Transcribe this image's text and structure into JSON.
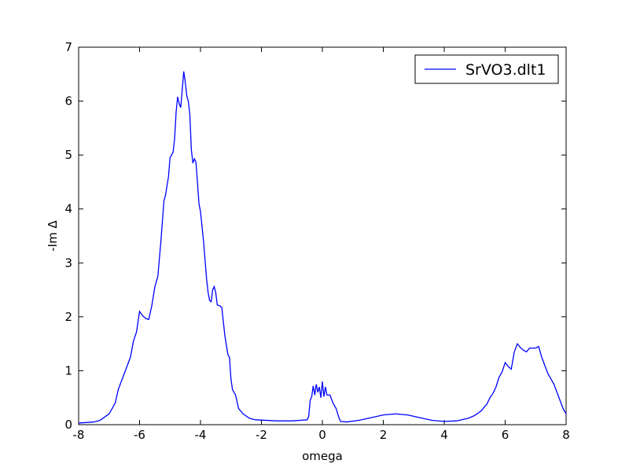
{
  "chart_data": {
    "type": "line",
    "x_label": "omega",
    "y_label": "-Im Δ",
    "xlim": [
      -8,
      8
    ],
    "xticks": [
      -8,
      -6,
      -4,
      -2,
      0,
      2,
      4,
      6,
      8
    ],
    "ylim": [
      0,
      7
    ],
    "yticks": [
      0,
      1,
      2,
      3,
      4,
      5,
      6,
      7
    ],
    "grid": false,
    "legend": "upper right",
    "x": [
      -8,
      -7.5,
      -7.3,
      -7.0,
      -6.8,
      -6.7,
      -6.5,
      -6.3,
      -6.2,
      -6.1,
      -6.0,
      -5.9,
      -5.8,
      -5.7,
      -5.6,
      -5.5,
      -5.4,
      -5.3,
      -5.2,
      -5.15,
      -5.05,
      -5.0,
      -4.9,
      -4.85,
      -4.8,
      -4.75,
      -4.7,
      -4.65,
      -4.6,
      -4.55,
      -4.5,
      -4.45,
      -4.4,
      -4.35,
      -4.3,
      -4.25,
      -4.2,
      -4.15,
      -4.1,
      -4.05,
      -4.0,
      -3.9,
      -3.8,
      -3.75,
      -3.7,
      -3.65,
      -3.6,
      -3.55,
      -3.5,
      -3.45,
      -3.35,
      -3.3,
      -3.2,
      -3.1,
      -3.05,
      -3.0,
      -2.95,
      -2.85,
      -2.75,
      -2.6,
      -2.4,
      -2.2,
      -1.5,
      -1.0,
      -0.5,
      -0.45,
      -0.4,
      -0.35,
      -0.3,
      -0.25,
      -0.2,
      -0.15,
      -0.1,
      -0.05,
      0.0,
      0.05,
      0.1,
      0.15,
      0.25,
      0.35,
      0.45,
      0.55,
      0.6,
      0.8,
      1.2,
      1.6,
      2.0,
      2.4,
      2.8,
      3.2,
      3.6,
      4.0,
      4.4,
      4.8,
      5.0,
      5.2,
      5.4,
      5.5,
      5.6,
      5.7,
      5.8,
      5.9,
      6.0,
      6.1,
      6.2,
      6.3,
      6.4,
      6.5,
      6.6,
      6.7,
      6.8,
      7.0,
      7.1,
      7.2,
      7.4,
      7.6,
      7.8,
      7.9,
      8.0
    ],
    "series": [
      {
        "name": "SrVO3.dlt1",
        "color": "#0000ff",
        "values": [
          0.03,
          0.05,
          0.08,
          0.2,
          0.4,
          0.65,
          0.95,
          1.25,
          1.55,
          1.72,
          2.1,
          2.02,
          1.97,
          1.95,
          2.2,
          2.55,
          2.75,
          3.4,
          4.15,
          4.25,
          4.6,
          4.95,
          5.05,
          5.3,
          5.8,
          6.08,
          5.95,
          5.88,
          6.2,
          6.55,
          6.35,
          6.1,
          6.0,
          5.75,
          5.1,
          4.85,
          4.93,
          4.87,
          4.5,
          4.1,
          3.95,
          3.4,
          2.7,
          2.45,
          2.3,
          2.28,
          2.5,
          2.56,
          2.45,
          2.22,
          2.2,
          2.17,
          1.65,
          1.3,
          1.25,
          0.85,
          0.65,
          0.55,
          0.3,
          0.2,
          0.12,
          0.09,
          0.07,
          0.07,
          0.09,
          0.15,
          0.45,
          0.52,
          0.72,
          0.55,
          0.75,
          0.6,
          0.7,
          0.5,
          0.8,
          0.52,
          0.7,
          0.55,
          0.55,
          0.4,
          0.3,
          0.12,
          0.06,
          0.05,
          0.08,
          0.13,
          0.18,
          0.2,
          0.18,
          0.13,
          0.08,
          0.06,
          0.07,
          0.12,
          0.17,
          0.25,
          0.38,
          0.5,
          0.58,
          0.7,
          0.88,
          0.98,
          1.15,
          1.08,
          1.03,
          1.35,
          1.5,
          1.43,
          1.38,
          1.35,
          1.42,
          1.42,
          1.45,
          1.25,
          0.95,
          0.75,
          0.45,
          0.3,
          0.2
        ]
      }
    ]
  }
}
